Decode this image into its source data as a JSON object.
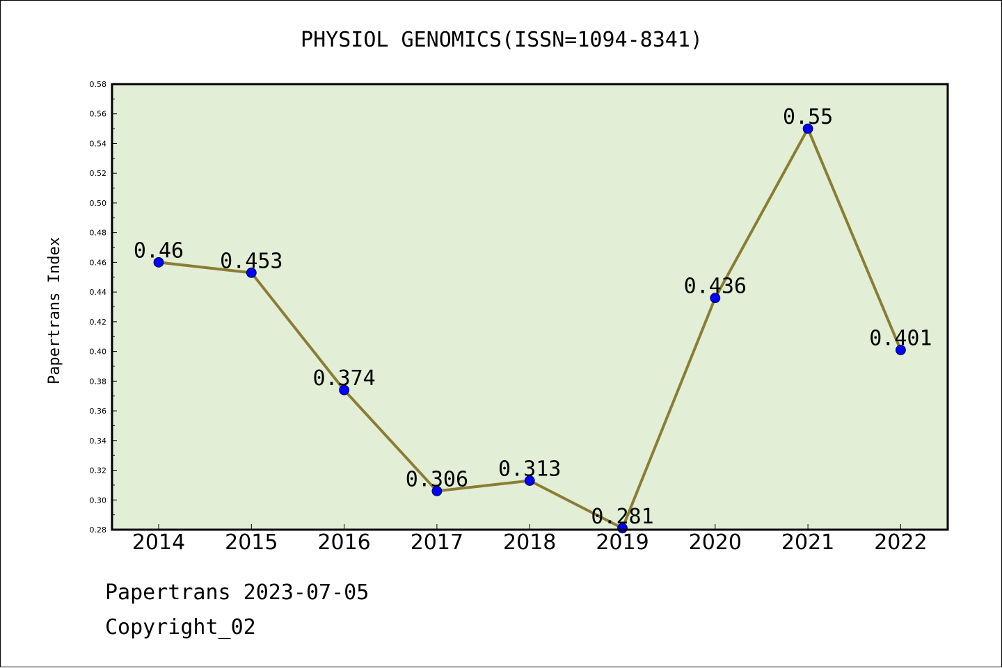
{
  "chart_data": {
    "type": "line",
    "title": "PHYSIOL GENOMICS(ISSN=1094-8341)",
    "xlabel": "",
    "ylabel": "Papertrans Index",
    "categories": [
      "2014",
      "2015",
      "2016",
      "2017",
      "2018",
      "2019",
      "2020",
      "2021",
      "2022"
    ],
    "values": [
      0.46,
      0.453,
      0.374,
      0.306,
      0.313,
      0.281,
      0.436,
      0.55,
      0.401
    ],
    "data_labels": [
      "0.46",
      "0.453",
      "0.374",
      "0.306",
      "0.313",
      "0.281",
      "0.436",
      "0.55",
      "0.401"
    ],
    "ylim": [
      0.28,
      0.58
    ],
    "yticks": [
      "0.28",
      "0.30",
      "0.32",
      "0.34",
      "0.36",
      "0.38",
      "0.40",
      "0.42",
      "0.44",
      "0.46",
      "0.48",
      "0.50",
      "0.52",
      "0.54",
      "0.56",
      "0.58"
    ],
    "grid": false,
    "legend": "none",
    "colors": {
      "plot_background": "#e2efd6",
      "line": "#8b7d35",
      "marker": "#0000ff"
    }
  },
  "footer": {
    "line1": "Papertrans 2023-07-05",
    "line2": "Copyright_02"
  }
}
